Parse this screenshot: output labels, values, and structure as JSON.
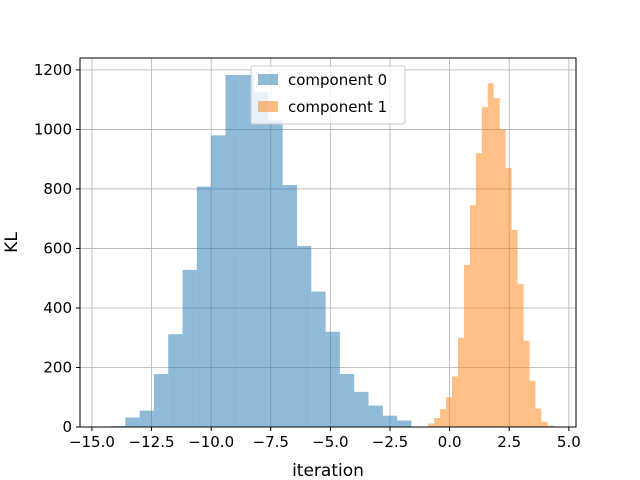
{
  "chart_data": {
    "type": "bar",
    "subtype": "histogram",
    "xlabel": "iteration",
    "ylabel": "KL",
    "xlim": [
      -15.5,
      5.3
    ],
    "ylim": [
      0,
      1240
    ],
    "xticks": [
      -15,
      -12.5,
      -10,
      -7.5,
      -5,
      -2.5,
      0,
      2.5,
      5
    ],
    "xtick_labels": [
      "−15.0",
      "−12.5",
      "−10.0",
      "−7.5",
      "−5.0",
      "−2.5",
      "0.0",
      "2.5",
      "5.0"
    ],
    "yticks": [
      0,
      200,
      400,
      600,
      800,
      1000,
      1200
    ],
    "ytick_labels": [
      "0",
      "200",
      "400",
      "600",
      "800",
      "1000",
      "1200"
    ],
    "grid": true,
    "legend_position": "top-center",
    "series": [
      {
        "name": "component 0",
        "color": "#1f77b4",
        "alpha": 0.5,
        "bin_edges": [
          -14.2,
          -13.6,
          -13.0,
          -12.4,
          -11.8,
          -11.2,
          -10.6,
          -10.0,
          -9.4,
          -8.8,
          -8.2,
          -7.6,
          -7.0,
          -6.4,
          -5.8,
          -5.2,
          -4.6,
          -4.0,
          -3.4,
          -2.8,
          -2.2,
          -1.6
        ],
        "counts": [
          3,
          32,
          55,
          178,
          312,
          528,
          808,
          980,
          1183,
          1183,
          1125,
          1030,
          813,
          608,
          455,
          320,
          178,
          118,
          72,
          38,
          22
        ]
      },
      {
        "name": "component 1",
        "color": "#ff7f0e",
        "alpha": 0.5,
        "bin_edges": [
          -0.9,
          -0.65,
          -0.4,
          -0.15,
          0.1,
          0.35,
          0.6,
          0.85,
          1.1,
          1.35,
          1.6,
          1.85,
          2.1,
          2.35,
          2.6,
          2.85,
          3.1,
          3.35,
          3.6,
          3.85,
          4.1,
          4.35
        ],
        "counts": [
          12,
          30,
          60,
          100,
          170,
          300,
          545,
          745,
          920,
          1075,
          1155,
          1105,
          1000,
          870,
          662,
          480,
          290,
          155,
          62,
          18,
          5
        ]
      }
    ]
  }
}
